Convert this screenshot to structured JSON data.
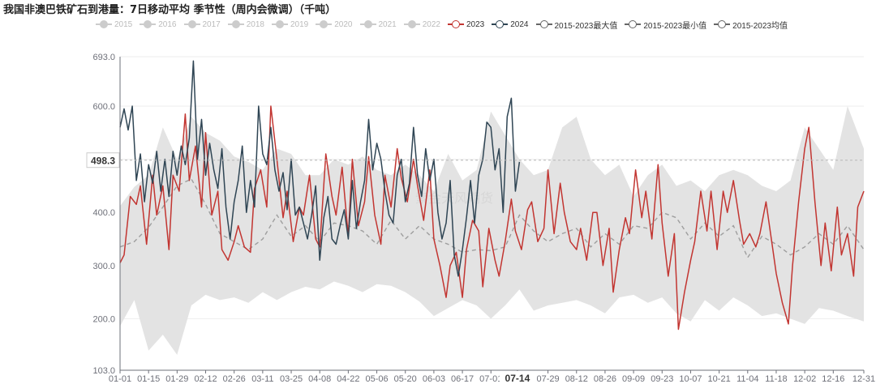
{
  "title": "我国非澳巴铁矿石到港量：7日移动平均 季节性（周内会微调）（千吨）",
  "watermark": "紫金天风期货",
  "colors": {
    "y2023": "#c23531",
    "y2024": "#2f4554",
    "inactive": "#cccccc",
    "stat": "#666666",
    "band": "#e3e3e3",
    "mean": "#9e9e9e",
    "axis": "#6e7079",
    "grid": "#eeeeee"
  },
  "legend": [
    {
      "label": "2015",
      "active": false,
      "color": "#cccccc"
    },
    {
      "label": "2016",
      "active": false,
      "color": "#cccccc"
    },
    {
      "label": "2017",
      "active": false,
      "color": "#cccccc"
    },
    {
      "label": "2018",
      "active": false,
      "color": "#cccccc"
    },
    {
      "label": "2019",
      "active": false,
      "color": "#cccccc"
    },
    {
      "label": "2020",
      "active": false,
      "color": "#cccccc"
    },
    {
      "label": "2021",
      "active": false,
      "color": "#cccccc"
    },
    {
      "label": "2022",
      "active": false,
      "color": "#cccccc"
    },
    {
      "label": "2023",
      "active": true,
      "color": "#c23531"
    },
    {
      "label": "2024",
      "active": true,
      "color": "#2f4554"
    },
    {
      "label": "2015-2023最大值",
      "active": true,
      "color": "#666666"
    },
    {
      "label": "2015-2023最小值",
      "active": true,
      "color": "#666666"
    },
    {
      "label": "2015-2023均值",
      "active": true,
      "color": "#666666"
    }
  ],
  "chart_data": {
    "type": "line",
    "xlabel": "",
    "ylabel": "",
    "ylim": [
      103.0,
      693.0
    ],
    "yticks": [
      103.0,
      200.0,
      300.0,
      400.0,
      500.0,
      600.0,
      693.0
    ],
    "ytick_labels": [
      "103.0",
      "200.0",
      "300.0",
      "400.0",
      "500.0",
      "600.0",
      "693.0"
    ],
    "x_range_days": [
      1,
      366
    ],
    "xtick_labels": [
      "01-01",
      "01-15",
      "01-29",
      "02-12",
      "02-26",
      "03-11",
      "03-25",
      "04-08",
      "04-22",
      "05-06",
      "05-20",
      "06-03",
      "06-17",
      "07-01",
      "07-14",
      "07-29",
      "08-12",
      "08-26",
      "09-09",
      "09-23",
      "10-07",
      "10-21",
      "11-04",
      "11-18",
      "12-02",
      "12-16",
      "12-31"
    ],
    "xtick_days": [
      1,
      15,
      29,
      43,
      57,
      71,
      85,
      99,
      113,
      127,
      141,
      155,
      169,
      183,
      196,
      211,
      225,
      239,
      253,
      267,
      281,
      295,
      309,
      323,
      337,
      351,
      366
    ],
    "axis_pointer": {
      "x_label": "07-14",
      "x_day": 196,
      "y_label": "498.3",
      "y_value": 498.3
    },
    "grid": true,
    "legend_position": "top",
    "band": {
      "name_max": "2015-2023最大值",
      "name_min": "2015-2023最小值"
    },
    "series": [
      {
        "name": "2015-2023最大值",
        "x": [
          1,
          8,
          15,
          22,
          29,
          36,
          43,
          50,
          57,
          64,
          71,
          78,
          85,
          92,
          99,
          106,
          113,
          120,
          127,
          134,
          141,
          148,
          155,
          162,
          169,
          176,
          183,
          190,
          197,
          204,
          211,
          218,
          225,
          232,
          239,
          246,
          253,
          260,
          267,
          274,
          281,
          288,
          295,
          302,
          309,
          316,
          323,
          330,
          337,
          344,
          351,
          358,
          366
        ],
        "values": [
          412,
          448,
          470,
          560,
          500,
          580,
          550,
          535,
          505,
          495,
          480,
          520,
          510,
          470,
          470,
          500,
          490,
          505,
          480,
          470,
          490,
          470,
          440,
          510,
          460,
          480,
          590,
          545,
          500,
          470,
          480,
          560,
          580,
          500,
          470,
          490,
          430,
          470,
          490,
          450,
          460,
          440,
          470,
          480,
          470,
          450,
          440,
          460,
          560,
          520,
          480,
          600,
          520
        ]
      },
      {
        "name": "2015-2023最小值",
        "x": [
          1,
          8,
          15,
          22,
          29,
          36,
          43,
          50,
          57,
          64,
          71,
          78,
          85,
          92,
          99,
          106,
          113,
          120,
          127,
          134,
          141,
          148,
          155,
          162,
          169,
          176,
          183,
          190,
          197,
          204,
          211,
          218,
          225,
          232,
          239,
          246,
          253,
          260,
          267,
          274,
          281,
          288,
          295,
          302,
          309,
          316,
          323,
          330,
          337,
          344,
          351,
          358,
          366
        ],
        "values": [
          186,
          235,
          140,
          170,
          132,
          225,
          245,
          235,
          240,
          230,
          250,
          235,
          250,
          260,
          255,
          270,
          262,
          250,
          265,
          262,
          250,
          232,
          205,
          220,
          235,
          225,
          200,
          225,
          255,
          215,
          225,
          230,
          235,
          225,
          210,
          240,
          245,
          230,
          240,
          210,
          195,
          235,
          215,
          240,
          225,
          205,
          210,
          200,
          190,
          220,
          215,
          205,
          195
        ]
      },
      {
        "name": "2015-2023均值",
        "x": [
          1,
          8,
          15,
          22,
          29,
          36,
          43,
          50,
          57,
          64,
          71,
          78,
          85,
          92,
          99,
          106,
          113,
          120,
          127,
          134,
          141,
          148,
          155,
          162,
          169,
          176,
          183,
          190,
          197,
          204,
          211,
          218,
          225,
          232,
          239,
          246,
          253,
          260,
          267,
          274,
          281,
          288,
          295,
          302,
          309,
          316,
          323,
          330,
          337,
          344,
          351,
          358,
          366
        ],
        "values": [
          335,
          345,
          372,
          410,
          450,
          463,
          415,
          360,
          345,
          330,
          350,
          395,
          355,
          375,
          345,
          380,
          375,
          365,
          340,
          385,
          350,
          375,
          350,
          340,
          325,
          330,
          328,
          335,
          395,
          365,
          345,
          360,
          370,
          335,
          360,
          340,
          375,
          370,
          400,
          390,
          350,
          380,
          355,
          375,
          315,
          355,
          340,
          320,
          335,
          360,
          340,
          375,
          330
        ]
      },
      {
        "name": "2023",
        "x": [
          1,
          3,
          6,
          9,
          11,
          14,
          17,
          19,
          22,
          25,
          27,
          30,
          33,
          35,
          38,
          41,
          43,
          46,
          49,
          51,
          54,
          57,
          59,
          62,
          65,
          67,
          70,
          73,
          75,
          78,
          81,
          83,
          86,
          89,
          91,
          94,
          97,
          99,
          102,
          105,
          107,
          110,
          113,
          115,
          118,
          121,
          123,
          126,
          129,
          131,
          134,
          137,
          139,
          142,
          145,
          147,
          150,
          153,
          155,
          158,
          161,
          163,
          166,
          169,
          171,
          174,
          177,
          179,
          182,
          185,
          187,
          190,
          193,
          195,
          198,
          201,
          203,
          206,
          209,
          211,
          214,
          217,
          219,
          222,
          225,
          227,
          230,
          233,
          235,
          238,
          241,
          243,
          246,
          249,
          251,
          254,
          257,
          259,
          262,
          265,
          267,
          270,
          273,
          275,
          278,
          281,
          283,
          286,
          289,
          291,
          294,
          297,
          299,
          302,
          305,
          307,
          310,
          313,
          315,
          318,
          321,
          323,
          326,
          329,
          331,
          334,
          337,
          339,
          342,
          345,
          347,
          350,
          353,
          355,
          358,
          361,
          363,
          366
        ],
        "values": [
          305,
          320,
          430,
          415,
          450,
          340,
          470,
          395,
          450,
          330,
          470,
          440,
          585,
          460,
          525,
          410,
          550,
          395,
          440,
          330,
          310,
          345,
          375,
          335,
          325,
          445,
          480,
          410,
          600,
          500,
          390,
          440,
          345,
          410,
          395,
          470,
          350,
          335,
          510,
          430,
          395,
          485,
          355,
          500,
          375,
          420,
          505,
          395,
          340,
          470,
          410,
          520,
          465,
          420,
          500,
          450,
          385,
          480,
          350,
          300,
          240,
          300,
          325,
          240,
          330,
          385,
          365,
          260,
          370,
          310,
          280,
          345,
          425,
          365,
          330,
          405,
          420,
          345,
          370,
          480,
          360,
          455,
          400,
          345,
          330,
          370,
          310,
          400,
          400,
          300,
          370,
          250,
          330,
          390,
          360,
          480,
          390,
          440,
          350,
          490,
          380,
          280,
          360,
          180,
          250,
          310,
          345,
          440,
          365,
          440,
          330,
          440,
          400,
          460,
          385,
          340,
          360,
          335,
          360,
          420,
          340,
          285,
          230,
          190,
          300,
          420,
          520,
          560,
          420,
          300,
          380,
          290,
          410,
          320,
          360,
          280,
          410,
          440
        ]
      },
      {
        "name": "2024",
        "x": [
          1,
          3,
          5,
          7,
          9,
          11,
          13,
          15,
          17,
          19,
          21,
          23,
          25,
          27,
          29,
          31,
          33,
          35,
          37,
          39,
          41,
          43,
          45,
          47,
          49,
          51,
          53,
          55,
          57,
          59,
          61,
          63,
          65,
          67,
          69,
          71,
          73,
          75,
          77,
          79,
          81,
          83,
          85,
          87,
          89,
          91,
          93,
          95,
          97,
          99,
          101,
          103,
          105,
          107,
          109,
          111,
          113,
          115,
          117,
          119,
          121,
          123,
          125,
          127,
          129,
          131,
          133,
          135,
          137,
          139,
          141,
          143,
          145,
          147,
          149,
          151,
          153,
          155,
          157,
          159,
          161,
          163,
          165,
          167,
          169,
          171,
          173,
          175,
          177,
          179,
          181,
          183,
          185,
          187,
          189,
          191,
          193,
          195,
          197
        ],
        "values": [
          560,
          595,
          555,
          600,
          460,
          510,
          420,
          490,
          455,
          515,
          440,
          500,
          430,
          515,
          470,
          525,
          490,
          540,
          685,
          500,
          575,
          470,
          530,
          480,
          445,
          520,
          410,
          350,
          420,
          460,
          525,
          400,
          460,
          410,
          600,
          510,
          490,
          560,
          480,
          440,
          475,
          405,
          500,
          395,
          410,
          380,
          350,
          395,
          450,
          310,
          390,
          430,
          350,
          340,
          375,
          405,
          350,
          460,
          370,
          420,
          460,
          575,
          480,
          530,
          500,
          440,
          395,
          380,
          470,
          500,
          420,
          455,
          560,
          470,
          430,
          520,
          460,
          500,
          400,
          350,
          380,
          460,
          320,
          280,
          330,
          390,
          460,
          380,
          470,
          500,
          570,
          560,
          480,
          520,
          400,
          580,
          615,
          440,
          495
        ]
      }
    ]
  }
}
